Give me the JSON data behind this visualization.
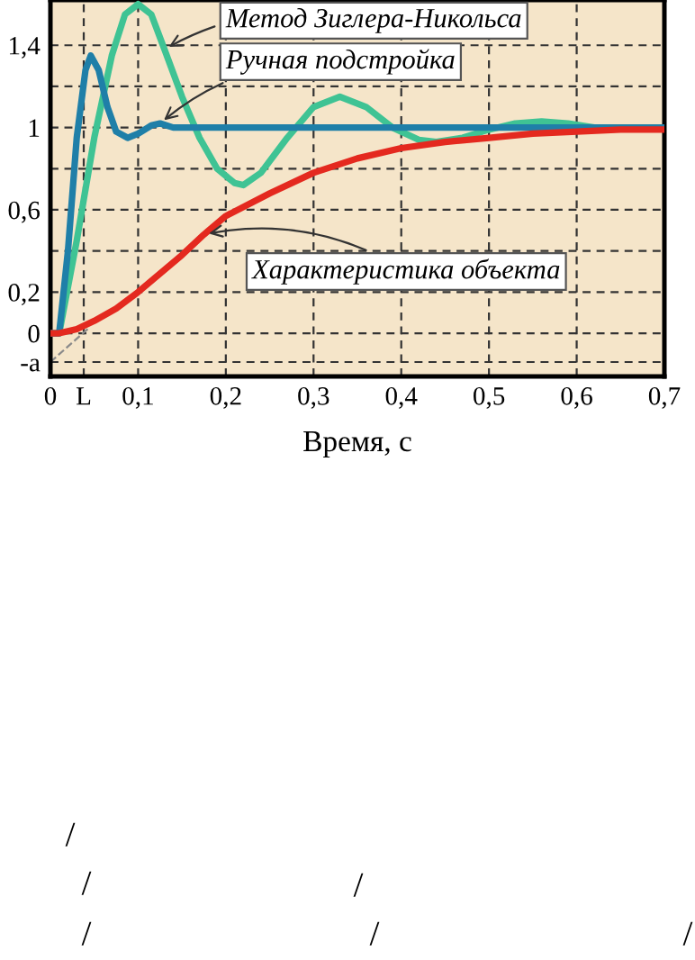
{
  "chart_data": {
    "type": "line",
    "xlabel": "Время, с",
    "xlim": [
      0,
      0.7
    ],
    "ylim": [
      -0.21,
      1.62
    ],
    "xticks": [
      0,
      {
        "value": 0.038,
        "label": "L"
      },
      {
        "value": 0.1,
        "label": "0,1"
      },
      {
        "value": 0.2,
        "label": "0,2"
      },
      {
        "value": 0.3,
        "label": "0,3"
      },
      {
        "value": 0.4,
        "label": "0,4"
      },
      {
        "value": 0.5,
        "label": "0,5"
      },
      {
        "value": 0.6,
        "label": "0,6"
      },
      {
        "value": 0.7,
        "label": "0,7"
      }
    ],
    "yticks": [
      {
        "value": -0.14,
        "label": "-a"
      },
      0,
      {
        "value": 0.2,
        "label": "0,2"
      },
      {
        "value": 0.4,
        "label": null
      },
      {
        "value": 0.6,
        "label": "0,6"
      },
      {
        "value": 0.8,
        "label": null
      },
      1,
      {
        "value": 1.2,
        "label": null
      },
      {
        "value": 1.4,
        "label": "1,4"
      }
    ],
    "grid": true,
    "marker": "none",
    "series": [
      {
        "name": "Метод Зиглера-Никольса",
        "color": "#3fc394",
        "x": [
          0,
          0.01,
          0.03,
          0.05,
          0.07,
          0.085,
          0.1,
          0.115,
          0.13,
          0.15,
          0.17,
          0.19,
          0.21,
          0.22,
          0.24,
          0.27,
          0.3,
          0.33,
          0.36,
          0.39,
          0.42,
          0.44,
          0.47,
          0.5,
          0.53,
          0.56,
          0.59,
          0.62,
          0.66,
          0.7
        ],
        "values": [
          0,
          0,
          0.45,
          0.95,
          1.35,
          1.55,
          1.6,
          1.55,
          1.38,
          1.15,
          0.95,
          0.8,
          0.73,
          0.72,
          0.78,
          0.95,
          1.1,
          1.15,
          1.1,
          1.0,
          0.94,
          0.93,
          0.95,
          0.99,
          1.02,
          1.03,
          1.02,
          1.0,
          1.0,
          1.0
        ]
      },
      {
        "name": "Ручная подстройка",
        "color": "#1f7fa8",
        "x": [
          0,
          0.01,
          0.02,
          0.03,
          0.04,
          0.046,
          0.055,
          0.065,
          0.075,
          0.088,
          0.1,
          0.115,
          0.125,
          0.14,
          0.16,
          0.7
        ],
        "values": [
          0,
          0,
          0.4,
          0.95,
          1.28,
          1.35,
          1.28,
          1.1,
          0.98,
          0.95,
          0.97,
          1.01,
          1.02,
          1.0,
          1.0,
          1.0
        ]
      },
      {
        "name": "Характеристика объекта",
        "color": "#e4291f",
        "x": [
          0,
          0.01,
          0.03,
          0.05,
          0.075,
          0.1,
          0.125,
          0.15,
          0.175,
          0.2,
          0.25,
          0.3,
          0.35,
          0.4,
          0.45,
          0.5,
          0.55,
          0.6,
          0.65,
          0.7
        ],
        "values": [
          0,
          0,
          0.02,
          0.06,
          0.12,
          0.2,
          0.29,
          0.38,
          0.48,
          0.57,
          0.68,
          0.78,
          0.85,
          0.9,
          0.93,
          0.95,
          0.97,
          0.98,
          0.99,
          0.99
        ]
      },
      {
        "type": "line",
        "color": "#8a8a8a",
        "line_style": "dashed",
        "x": [
          0,
          0.045
        ],
        "values": [
          -0.14,
          0.03
        ]
      }
    ],
    "annotations": [
      "/",
      "/",
      "/",
      "/",
      "/",
      "/"
    ]
  }
}
